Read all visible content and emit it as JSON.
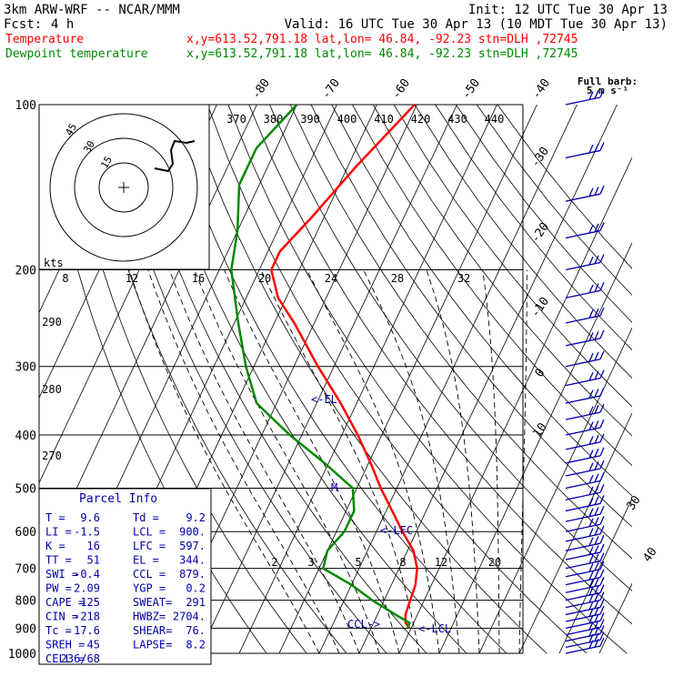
{
  "header": {
    "model": "3km ARW-WRF -- NCAR/MMM",
    "init": "Init: 12 UTC Tue 30 Apr 13",
    "fcst_label": "Fcst:",
    "fcst_value": "4 h",
    "valid": "Valid: 16 UTC Tue 30 Apr 13 (10 MDT Tue 30 Apr 13)",
    "lines": [
      {
        "name": "Temperature",
        "info": "x,y=613.52,791.18   lat,lon= 46.84, -92.23  stn=DLH ,72745",
        "color": "#ff0000"
      },
      {
        "name": "Dewpoint temperature",
        "info": "x,y=613.52,791.18   lat,lon= 46.84, -92.23  stn=DLH ,72745",
        "color": "#008800"
      }
    ]
  },
  "wind_key": {
    "line1": "Full barb:",
    "line2": "5 m s⁻¹"
  },
  "parcel": {
    "title": "Parcel Info",
    "rows": [
      [
        "T  =",
        "9.6",
        "Td =",
        "9.2"
      ],
      [
        "LI =",
        "-1.5",
        "LCL =",
        "900."
      ],
      [
        "K  =",
        "16",
        "LFC =",
        "597."
      ],
      [
        "TT =",
        "51",
        "EL  =",
        "344."
      ],
      [
        "SWI =",
        "-0.4",
        "CCL =",
        "879."
      ],
      [
        "PW =",
        "2.09",
        "YGP =",
        "0.2"
      ],
      [
        "CAPE =",
        "125",
        "SWEAT=",
        "291"
      ],
      [
        "CIN =",
        "-218",
        "HWBZ=",
        "2704."
      ],
      [
        "Tc =",
        "17.6",
        "SHEAR=",
        "76."
      ],
      [
        "SREH =",
        "45",
        "LAPSE=",
        "8.2"
      ],
      [
        "CELL =",
        "236/68",
        "",
        ""
      ]
    ]
  },
  "level_labels": {
    "el": "EL",
    "lfc": "LFC",
    "lcl": "LCL",
    "ccl": "CCL"
  },
  "hodograph": {
    "units": "kts",
    "ring_labels": [
      "15",
      "30",
      "45"
    ]
  },
  "chart_data": {
    "type": "line",
    "subtype": "skew-T log-P",
    "pressure_levels": [
      100,
      200,
      300,
      400,
      500,
      600,
      700,
      800,
      900,
      1000
    ],
    "temp_ticks_top": [
      -80,
      -70,
      -60,
      -50,
      -40
    ],
    "temp_ticks_right": [
      -30,
      -20,
      -10,
      0,
      10
    ],
    "theta_labels_top": [
      370,
      380,
      390,
      400,
      410,
      420,
      430,
      440
    ],
    "theta_labels_left": [
      290,
      280,
      270
    ],
    "mixing_ratio_labels_upper": [
      8,
      12,
      16,
      20,
      24,
      28,
      32
    ],
    "mixing_ratio_labels_lower": [
      2,
      3,
      5,
      8,
      12,
      20
    ],
    "theta_e_labels": [
      30,
      40
    ],
    "series": [
      {
        "name": "Temperature",
        "color": "#ff0000",
        "points": [
          [
            100,
            -50.6
          ],
          [
            130,
            -58
          ],
          [
            160,
            -63
          ],
          [
            185,
            -67
          ],
          [
            200,
            -67
          ],
          [
            225,
            -62
          ],
          [
            250,
            -55
          ],
          [
            300,
            -44
          ],
          [
            350,
            -34
          ],
          [
            400,
            -26
          ],
          [
            450,
            -19.5
          ],
          [
            500,
            -14
          ],
          [
            550,
            -8.5
          ],
          [
            600,
            -3.5
          ],
          [
            650,
            1.5
          ],
          [
            700,
            4.5
          ],
          [
            750,
            6
          ],
          [
            800,
            6.5
          ],
          [
            850,
            7
          ],
          [
            880,
            8
          ],
          [
            900,
            9.6
          ]
        ]
      },
      {
        "name": "Dewpoint temperature",
        "color": "#008800",
        "points": [
          [
            100,
            -80
          ],
          [
            120,
            -85
          ],
          [
            140,
            -85
          ],
          [
            170,
            -80
          ],
          [
            200,
            -77
          ],
          [
            250,
            -69
          ],
          [
            300,
            -62
          ],
          [
            350,
            -55
          ],
          [
            400,
            -43
          ],
          [
            450,
            -31
          ],
          [
            500,
            -21
          ],
          [
            550,
            -18
          ],
          [
            600,
            -18
          ],
          [
            650,
            -20
          ],
          [
            700,
            -19
          ],
          [
            750,
            -10
          ],
          [
            800,
            -3
          ],
          [
            850,
            4.5
          ],
          [
            880,
            9.0
          ],
          [
            900,
            9.2
          ]
        ]
      }
    ],
    "wind_barbs": "present at right margin, 100-1000 hPa"
  }
}
